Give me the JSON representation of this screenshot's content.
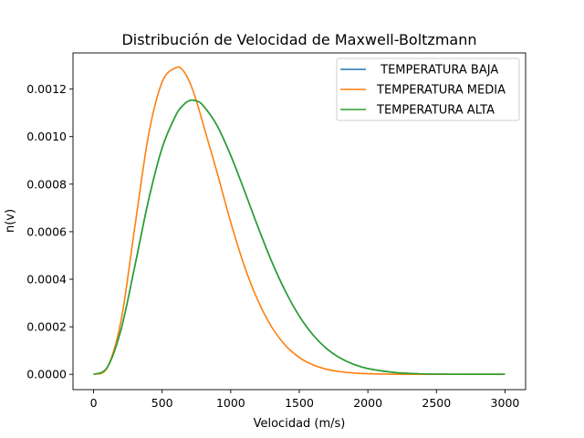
{
  "chart_data": {
    "type": "line",
    "title": "Distribución de Velocidad de Maxwell-Boltzmann",
    "xlabel": "Velocidad (m/s)",
    "ylabel": "n(v)",
    "xlim": [
      -150,
      3150
    ],
    "ylim": [
      -6.44e-05,
      0.001352
    ],
    "xticks": [
      0,
      500,
      1000,
      1500,
      2000,
      2500,
      3000
    ],
    "xtick_labels": [
      "0",
      "500",
      "1000",
      "1500",
      "2000",
      "2500",
      "3000"
    ],
    "yticks": [
      0,
      0.0002,
      0.0004,
      0.0006,
      0.0008,
      0.001,
      0.0012
    ],
    "ytick_labels": [
      "0.0000",
      "0.0002",
      "0.0004",
      "0.0006",
      "0.0008",
      "0.0010",
      "0.0012"
    ],
    "grid": false,
    "legend_position": "top-right",
    "x": [
      0,
      100,
      200,
      300,
      400,
      500,
      600,
      650,
      700,
      750,
      800,
      900,
      1000,
      1100,
      1200,
      1300,
      1400,
      1500,
      1600,
      1700,
      1800,
      1900,
      2000,
      2200,
      2400,
      2600,
      2800,
      3000
    ],
    "series": [
      {
        "name": " TEMPERATURA BAJA",
        "color": "#1f77b4",
        "values": [
          0,
          2.93e-05,
          0.000188,
          0.000453,
          0.000731,
          0.000953,
          0.00109,
          0.00113,
          0.001152,
          0.00115,
          0.00113,
          0.001047,
          0.000921,
          0.000772,
          0.000618,
          0.000473,
          0.000348,
          0.000245,
          0.000166,
          0.000108,
          6.81e-05,
          4.14e-05,
          2.42e-05,
          7.2e-06,
          1.8e-06,
          4e-07,
          1e-07,
          0
        ]
      },
      {
        "name": "TEMPERATURA MEDIA",
        "color": "#ff7f0e",
        "values": [
          0,
          2.88e-05,
          0.000225,
          0.000617,
          0.001004,
          0.00123,
          0.00129,
          0.00128,
          0.00123,
          0.00115,
          0.00105,
          0.00085,
          0.00064,
          0.000455,
          0.000308,
          0.000198,
          0.000121,
          7.07e-05,
          3.97e-05,
          2.13e-05,
          1.1e-05,
          5.5e-06,
          2.6e-06,
          5e-07,
          1e-07,
          0,
          0,
          0
        ]
      },
      {
        "name": "TEMPERATURA ALTA",
        "color": "#2ca02c",
        "values": [
          0,
          2.93e-05,
          0.000188,
          0.000453,
          0.000731,
          0.000953,
          0.00109,
          0.00113,
          0.001152,
          0.00115,
          0.00113,
          0.001047,
          0.000921,
          0.000772,
          0.000618,
          0.000473,
          0.000348,
          0.000245,
          0.000166,
          0.000108,
          6.81e-05,
          4.14e-05,
          2.42e-05,
          7.2e-06,
          1.8e-06,
          4e-07,
          1e-07,
          0
        ]
      }
    ]
  }
}
